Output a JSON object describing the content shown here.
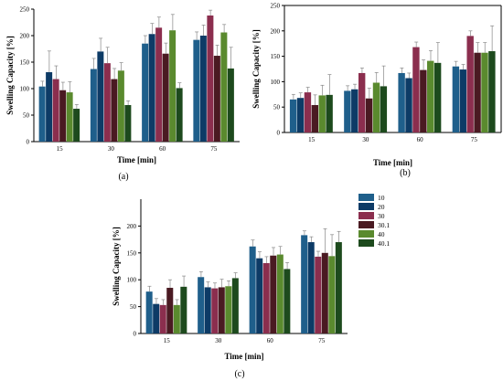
{
  "chart_data": [
    {
      "panel": "(a)",
      "type": "bar",
      "xlabel": "Time [min]",
      "ylabel": "Swelling Capacity [%]",
      "ylim": [
        0,
        250
      ],
      "yticks": [
        0,
        50,
        100,
        150,
        200,
        250
      ],
      "categories": [
        "15",
        "30",
        "60",
        "75"
      ],
      "series": [
        {
          "name": "10",
          "values": [
            104,
            137,
            185,
            192
          ],
          "err": [
            10,
            20,
            15,
            15
          ]
        },
        {
          "name": "20",
          "values": [
            131,
            170,
            203,
            200
          ],
          "err": [
            40,
            25,
            20,
            20
          ]
        },
        {
          "name": "30",
          "values": [
            118,
            148,
            215,
            238
          ],
          "err": [
            25,
            30,
            20,
            10
          ]
        },
        {
          "name": "30.1",
          "values": [
            97,
            118,
            166,
            162
          ],
          "err": [
            15,
            20,
            20,
            20
          ]
        },
        {
          "name": "40",
          "values": [
            93,
            134,
            210,
            206
          ],
          "err": [
            20,
            15,
            30,
            15
          ]
        },
        {
          "name": "40.1",
          "values": [
            62,
            69,
            101,
            138
          ],
          "err": [
            8,
            8,
            10,
            40
          ]
        }
      ]
    },
    {
      "panel": "(b)",
      "type": "bar",
      "xlabel": "Time [min]",
      "ylabel": "Swelling Capacity [%]",
      "ylim": [
        0,
        250
      ],
      "yticks": [
        0,
        50,
        100,
        150,
        200,
        250
      ],
      "categories": [
        "15",
        "30",
        "60",
        "75"
      ],
      "series": [
        {
          "name": "10",
          "values": [
            65,
            82,
            117,
            130
          ],
          "err": [
            10,
            10,
            10,
            10
          ]
        },
        {
          "name": "20",
          "values": [
            68,
            85,
            107,
            124
          ],
          "err": [
            10,
            10,
            10,
            10
          ]
        },
        {
          "name": "30",
          "values": [
            79,
            117,
            168,
            190
          ],
          "err": [
            10,
            10,
            10,
            10
          ]
        },
        {
          "name": "30.1",
          "values": [
            54,
            67,
            123,
            157
          ],
          "err": [
            20,
            20,
            20,
            20
          ]
        },
        {
          "name": "40",
          "values": [
            73,
            98,
            141,
            157
          ],
          "err": [
            20,
            20,
            20,
            20
          ]
        },
        {
          "name": "40.1",
          "values": [
            74,
            91,
            137,
            160
          ],
          "err": [
            40,
            40,
            40,
            50
          ]
        }
      ]
    },
    {
      "panel": "(c)",
      "type": "bar",
      "xlabel": "Time [min]",
      "ylabel": "Swelling Capacity [%]",
      "ylim": [
        0,
        250
      ],
      "yticks": [
        0,
        50,
        100,
        150,
        200
      ],
      "categories": [
        "15",
        "30",
        "60",
        "75"
      ],
      "series": [
        {
          "name": "10",
          "values": [
            78,
            105,
            162,
            183
          ],
          "err": [
            10,
            10,
            12,
            8
          ]
        },
        {
          "name": "20",
          "values": [
            55,
            86,
            140,
            170
          ],
          "err": [
            10,
            10,
            12,
            10
          ]
        },
        {
          "name": "30",
          "values": [
            53,
            84,
            131,
            143
          ],
          "err": [
            10,
            10,
            12,
            10
          ]
        },
        {
          "name": "30.1",
          "values": [
            85,
            86,
            145,
            150
          ],
          "err": [
            15,
            15,
            15,
            45
          ]
        },
        {
          "name": "40",
          "values": [
            53,
            88,
            147,
            144
          ],
          "err": [
            10,
            10,
            15,
            40
          ]
        },
        {
          "name": "40.1",
          "values": [
            87,
            103,
            120,
            170
          ],
          "err": [
            20,
            10,
            12,
            20
          ]
        }
      ],
      "legend": {
        "position": "right",
        "labels": [
          "10",
          "20",
          "30",
          "30.1",
          "40",
          "40.1"
        ]
      }
    }
  ],
  "colors": [
    "#1f5f8b",
    "#0d3b66",
    "#8b2e4e",
    "#4a1a22",
    "#5a8a2e",
    "#1d4a1d"
  ]
}
